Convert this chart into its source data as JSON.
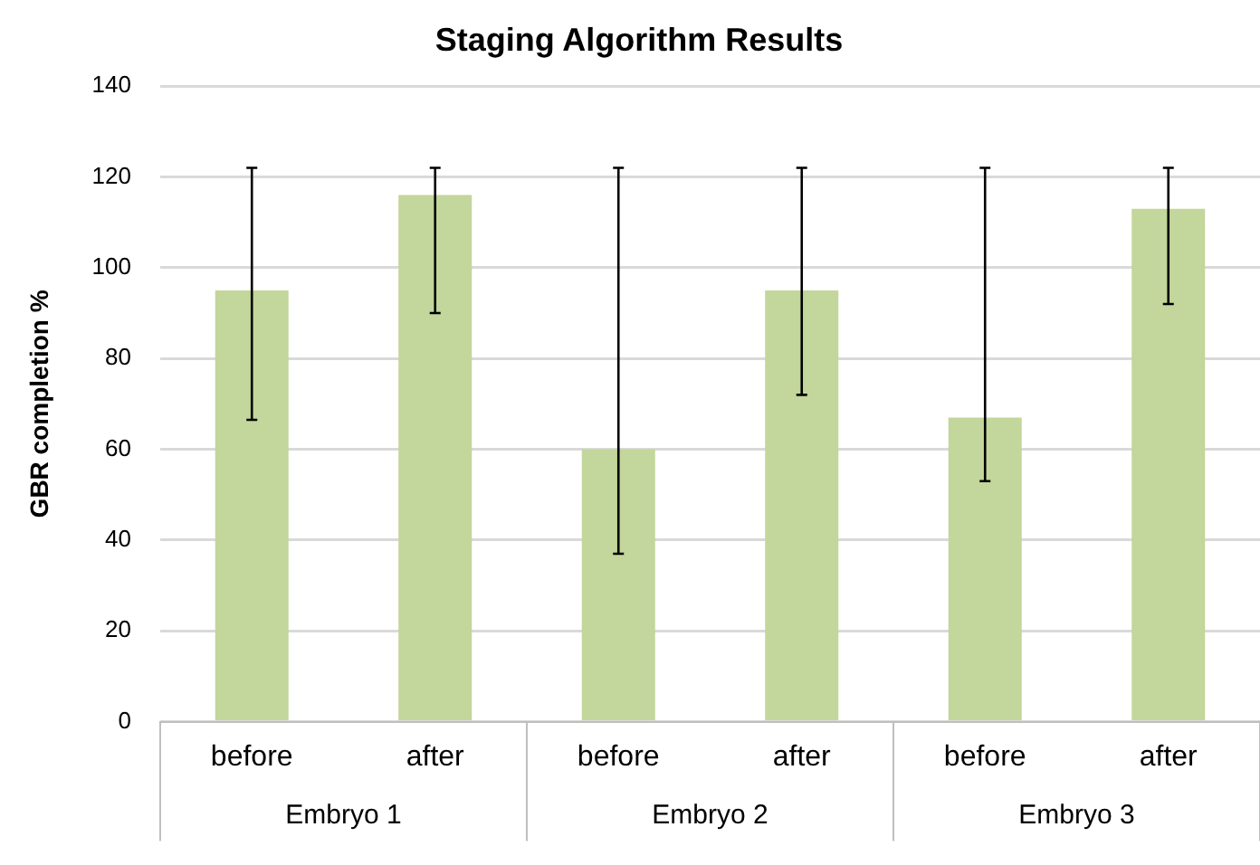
{
  "chart_data": {
    "type": "bar",
    "title": "Staging Algorithm Results",
    "ylabel": "GBR completion %",
    "categories": [
      "before",
      "after",
      "before",
      "after",
      "before",
      "after"
    ],
    "values": [
      95,
      116,
      60,
      95,
      67,
      113
    ],
    "errors": [
      [
        66.5,
        122
      ],
      [
        90,
        122
      ],
      [
        37,
        122
      ],
      [
        72,
        122
      ],
      [
        53,
        122
      ],
      [
        92,
        122
      ]
    ],
    "color": "#c3d69b",
    "ylim": [
      0,
      140
    ],
    "yticks": [
      0,
      20,
      40,
      60,
      80,
      100,
      120,
      140
    ],
    "grid": "y",
    "legend": false,
    "annotations": [
      "Embryo 1",
      "Embryo 2",
      "Embryo 3"
    ]
  }
}
